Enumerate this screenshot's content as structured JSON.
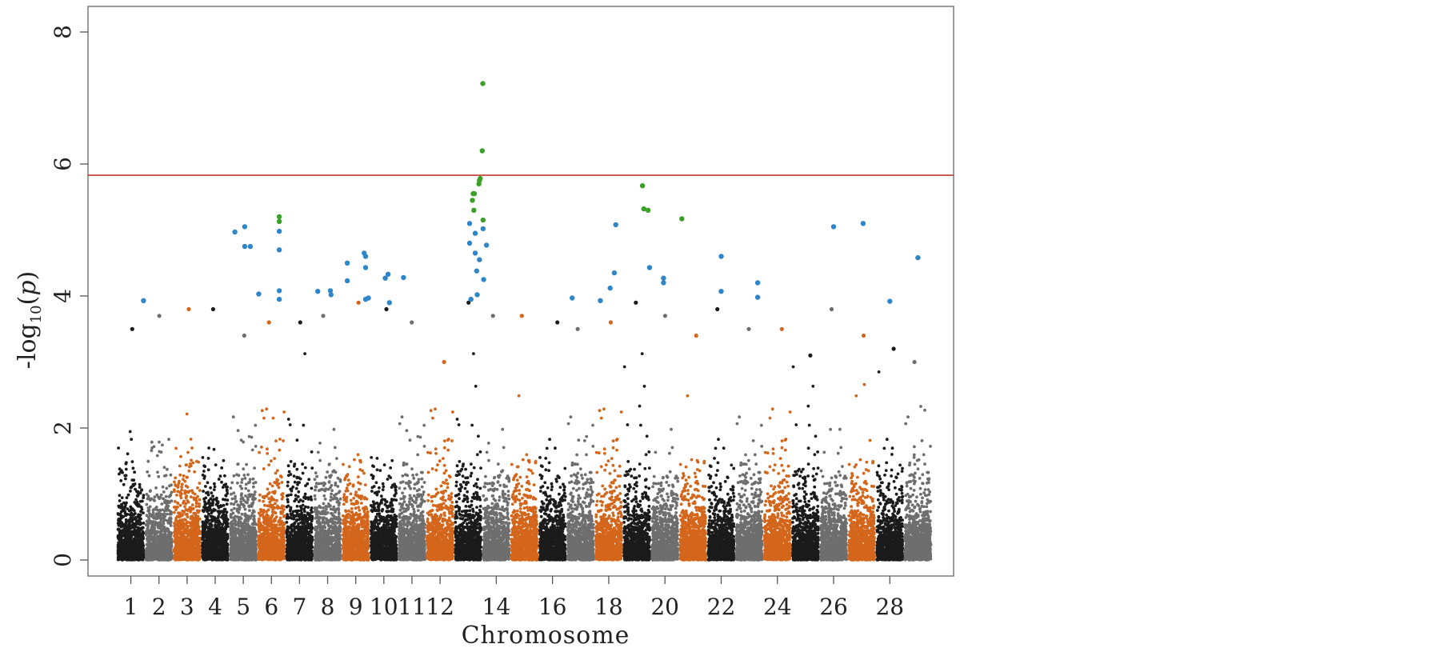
{
  "chart_data": {
    "type": "scatter",
    "subtype": "manhattan",
    "title": "",
    "xlabel": "Chromosome",
    "ylabel_prefix": "-log",
    "ylabel_sub": "10",
    "ylabel_var": "p",
    "ylim": [
      0,
      8
    ],
    "yticks": [
      0,
      2,
      4,
      6,
      8
    ],
    "grid": false,
    "legend": "none",
    "significance_threshold": 5.83,
    "threshold_color": "#c0392b",
    "colors": {
      "black": "#1b1b1b",
      "gray": "#6e6e6e",
      "orange": "#d4661c",
      "blue": "#2e86c8",
      "green": "#3aa02a"
    },
    "chromosome_pattern": [
      "black",
      "gray",
      "orange",
      "black",
      "gray",
      "orange",
      "black",
      "gray",
      "orange",
      "black",
      "gray",
      "orange",
      "black",
      "gray",
      "orange",
      "black",
      "gray",
      "orange",
      "black",
      "gray",
      "orange",
      "black",
      "gray",
      "orange",
      "black",
      "gray",
      "orange",
      "black",
      "gray"
    ],
    "chromosome_ticks": [
      "1",
      "2",
      "3",
      "4",
      "5",
      "6",
      "7",
      "8",
      "9",
      "10",
      "11",
      "12",
      "14",
      "16",
      "18",
      "20",
      "22",
      "24",
      "26",
      "28"
    ],
    "chromosomes": [
      {
        "chr": 1,
        "max": 3.5
      },
      {
        "chr": 2,
        "max": 3.7
      },
      {
        "chr": 3,
        "max": 3.8
      },
      {
        "chr": 4,
        "max": 3.8
      },
      {
        "chr": 5,
        "max": 3.4
      },
      {
        "chr": 6,
        "max": 3.6
      },
      {
        "chr": 7,
        "max": 3.6
      },
      {
        "chr": 8,
        "max": 3.7
      },
      {
        "chr": 9,
        "max": 3.9
      },
      {
        "chr": 10,
        "max": 3.8
      },
      {
        "chr": 11,
        "max": 3.6
      },
      {
        "chr": 12,
        "max": 3.0
      },
      {
        "chr": 13,
        "max": 3.9
      },
      {
        "chr": 14,
        "max": 3.7
      },
      {
        "chr": 15,
        "max": 3.7
      },
      {
        "chr": 16,
        "max": 3.6
      },
      {
        "chr": 17,
        "max": 3.5
      },
      {
        "chr": 18,
        "max": 3.6
      },
      {
        "chr": 19,
        "max": 3.9
      },
      {
        "chr": 20,
        "max": 3.7
      },
      {
        "chr": 21,
        "max": 3.4
      },
      {
        "chr": 22,
        "max": 3.8
      },
      {
        "chr": 23,
        "max": 3.5
      },
      {
        "chr": 24,
        "max": 3.5
      },
      {
        "chr": 25,
        "max": 3.1
      },
      {
        "chr": 26,
        "max": 3.8
      },
      {
        "chr": 27,
        "max": 3.4
      },
      {
        "chr": 28,
        "max": 3.2
      },
      {
        "chr": 29,
        "max": 3.0
      }
    ],
    "highlighted_snps": [
      {
        "chr": 1,
        "pos": 0.95,
        "y": 3.93,
        "color": "blue"
      },
      {
        "chr": 5,
        "pos": 0.2,
        "y": 4.97,
        "color": "blue"
      },
      {
        "chr": 5,
        "pos": 0.55,
        "y": 5.05,
        "color": "blue"
      },
      {
        "chr": 5,
        "pos": 0.55,
        "y": 4.75,
        "color": "blue"
      },
      {
        "chr": 5,
        "pos": 0.75,
        "y": 4.75,
        "color": "blue"
      },
      {
        "chr": 6,
        "pos": 0.05,
        "y": 4.03,
        "color": "blue"
      },
      {
        "chr": 6,
        "pos": 0.78,
        "y": 5.2,
        "color": "green"
      },
      {
        "chr": 6,
        "pos": 0.78,
        "y": 5.13,
        "color": "green"
      },
      {
        "chr": 6,
        "pos": 0.78,
        "y": 4.98,
        "color": "blue"
      },
      {
        "chr": 6,
        "pos": 0.78,
        "y": 4.7,
        "color": "blue"
      },
      {
        "chr": 6,
        "pos": 0.78,
        "y": 4.08,
        "color": "blue"
      },
      {
        "chr": 6,
        "pos": 0.78,
        "y": 3.95,
        "color": "blue"
      },
      {
        "chr": 8,
        "pos": 0.15,
        "y": 4.07,
        "color": "blue"
      },
      {
        "chr": 8,
        "pos": 0.6,
        "y": 4.08,
        "color": "blue"
      },
      {
        "chr": 8,
        "pos": 0.62,
        "y": 4.02,
        "color": "blue"
      },
      {
        "chr": 9,
        "pos": 0.2,
        "y": 4.5,
        "color": "blue"
      },
      {
        "chr": 9,
        "pos": 0.2,
        "y": 4.23,
        "color": "blue"
      },
      {
        "chr": 9,
        "pos": 0.8,
        "y": 4.65,
        "color": "blue"
      },
      {
        "chr": 9,
        "pos": 0.85,
        "y": 4.6,
        "color": "blue"
      },
      {
        "chr": 9,
        "pos": 0.85,
        "y": 4.43,
        "color": "blue"
      },
      {
        "chr": 9,
        "pos": 0.85,
        "y": 3.95,
        "color": "blue"
      },
      {
        "chr": 9,
        "pos": 0.95,
        "y": 3.97,
        "color": "blue"
      },
      {
        "chr": 10,
        "pos": 0.55,
        "y": 4.27,
        "color": "blue"
      },
      {
        "chr": 10,
        "pos": 0.65,
        "y": 4.33,
        "color": "blue"
      },
      {
        "chr": 10,
        "pos": 0.7,
        "y": 3.9,
        "color": "blue"
      },
      {
        "chr": 11,
        "pos": 0.2,
        "y": 4.28,
        "color": "blue"
      },
      {
        "chr": 13,
        "pos": 0.55,
        "y": 5.1,
        "color": "blue"
      },
      {
        "chr": 13,
        "pos": 0.55,
        "y": 4.8,
        "color": "blue"
      },
      {
        "chr": 13,
        "pos": 0.65,
        "y": 5.45,
        "color": "green"
      },
      {
        "chr": 13,
        "pos": 0.68,
        "y": 5.55,
        "color": "green"
      },
      {
        "chr": 13,
        "pos": 0.72,
        "y": 5.55,
        "color": "green"
      },
      {
        "chr": 13,
        "pos": 0.7,
        "y": 5.3,
        "color": "green"
      },
      {
        "chr": 13,
        "pos": 0.75,
        "y": 4.95,
        "color": "blue"
      },
      {
        "chr": 13,
        "pos": 0.75,
        "y": 4.65,
        "color": "blue"
      },
      {
        "chr": 13,
        "pos": 0.8,
        "y": 4.38,
        "color": "blue"
      },
      {
        "chr": 13,
        "pos": 0.82,
        "y": 4.02,
        "color": "blue"
      },
      {
        "chr": 13,
        "pos": 0.6,
        "y": 3.95,
        "color": "blue"
      },
      {
        "chr": 13,
        "pos": 0.88,
        "y": 5.7,
        "color": "green"
      },
      {
        "chr": 13,
        "pos": 0.9,
        "y": 5.75,
        "color": "green"
      },
      {
        "chr": 13,
        "pos": 0.93,
        "y": 5.78,
        "color": "green"
      },
      {
        "chr": 13,
        "pos": 0.9,
        "y": 4.55,
        "color": "blue"
      },
      {
        "chr": 14,
        "pos": 0.02,
        "y": 7.22,
        "color": "green"
      },
      {
        "chr": 14,
        "pos": 0.0,
        "y": 6.2,
        "color": "green"
      },
      {
        "chr": 14,
        "pos": 0.03,
        "y": 5.15,
        "color": "green"
      },
      {
        "chr": 14,
        "pos": 0.03,
        "y": 5.02,
        "color": "blue"
      },
      {
        "chr": 14,
        "pos": 0.05,
        "y": 4.25,
        "color": "blue"
      },
      {
        "chr": 14,
        "pos": 0.15,
        "y": 4.77,
        "color": "blue"
      },
      {
        "chr": 17,
        "pos": 0.2,
        "y": 3.97,
        "color": "blue"
      },
      {
        "chr": 18,
        "pos": 0.2,
        "y": 3.93,
        "color": "blue"
      },
      {
        "chr": 18,
        "pos": 0.55,
        "y": 4.12,
        "color": "blue"
      },
      {
        "chr": 18,
        "pos": 0.7,
        "y": 4.35,
        "color": "blue"
      },
      {
        "chr": 18,
        "pos": 0.75,
        "y": 5.08,
        "color": "blue"
      },
      {
        "chr": 19,
        "pos": 0.7,
        "y": 5.67,
        "color": "green"
      },
      {
        "chr": 19,
        "pos": 0.75,
        "y": 5.32,
        "color": "green"
      },
      {
        "chr": 19,
        "pos": 0.9,
        "y": 5.3,
        "color": "green"
      },
      {
        "chr": 19,
        "pos": 0.95,
        "y": 4.43,
        "color": "blue"
      },
      {
        "chr": 20,
        "pos": 0.45,
        "y": 4.27,
        "color": "blue"
      },
      {
        "chr": 20,
        "pos": 0.45,
        "y": 4.2,
        "color": "blue"
      },
      {
        "chr": 21,
        "pos": 0.1,
        "y": 5.17,
        "color": "green"
      },
      {
        "chr": 22,
        "pos": 0.5,
        "y": 4.6,
        "color": "blue"
      },
      {
        "chr": 22,
        "pos": 0.5,
        "y": 4.07,
        "color": "blue"
      },
      {
        "chr": 23,
        "pos": 0.8,
        "y": 4.2,
        "color": "blue"
      },
      {
        "chr": 23,
        "pos": 0.8,
        "y": 3.98,
        "color": "blue"
      },
      {
        "chr": 26,
        "pos": 0.5,
        "y": 5.05,
        "color": "blue"
      },
      {
        "chr": 27,
        "pos": 0.55,
        "y": 5.1,
        "color": "blue"
      },
      {
        "chr": 28,
        "pos": 0.5,
        "y": 3.92,
        "color": "blue"
      },
      {
        "chr": 29,
        "pos": 0.5,
        "y": 4.58,
        "color": "blue"
      }
    ]
  }
}
